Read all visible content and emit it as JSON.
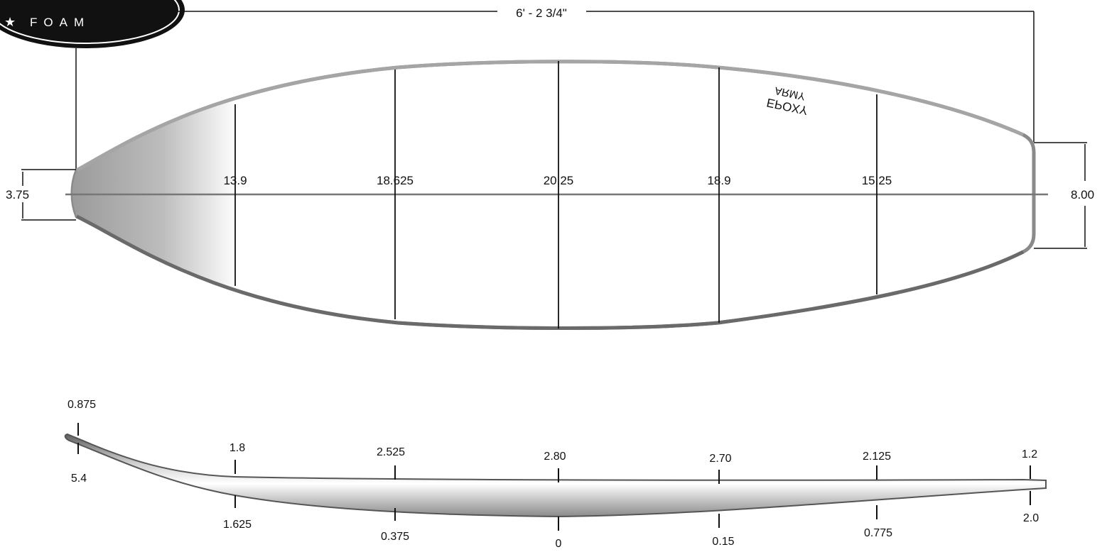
{
  "logo": {
    "wordmark": "FOAM",
    "star": "★"
  },
  "plan_view": {
    "overall_length": "6' - 2 3/4\"",
    "nose_width": "3.75",
    "tail_width": "8.00",
    "widths": [
      "13.9",
      "18.625",
      "20.25",
      "18.9",
      "15.25"
    ],
    "deck_text_line1": "EPOXY",
    "deck_text_line2": "ARMY"
  },
  "profile_view": {
    "top_values": [
      "0.875",
      "1.8",
      "2.525",
      "2.80",
      "2.70",
      "2.125",
      "1.2"
    ],
    "bottom_values": [
      "5.4",
      "1.625",
      "0.375",
      "0",
      "0.15",
      "0.775",
      "2.0"
    ]
  },
  "colors": {
    "outline": "#777777",
    "rail_dark": "#555555",
    "ink": "#111111"
  }
}
